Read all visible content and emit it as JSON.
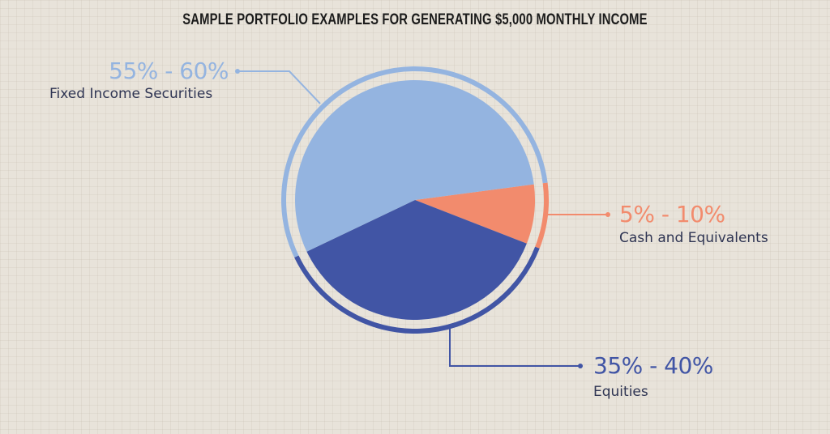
{
  "chart_data": {
    "type": "pie",
    "title": "SAMPLE PORTFOLIO EXAMPLES FOR GENERATING $5,000 MONTHLY INCOME",
    "slices": [
      {
        "label": "Cash and Equivalents",
        "range": "5% - 10%",
        "value": 8,
        "color": "#f28b6d"
      },
      {
        "label": "Equities",
        "range": "35% - 40%",
        "value": 37,
        "color": "#4155a5"
      },
      {
        "label": "Fixed Income Securities",
        "range": "55% - 60%",
        "value": 55,
        "color": "#94b4e0"
      }
    ]
  },
  "colors": {
    "background": "#e8e3da",
    "label_text": "#2f3553"
  }
}
